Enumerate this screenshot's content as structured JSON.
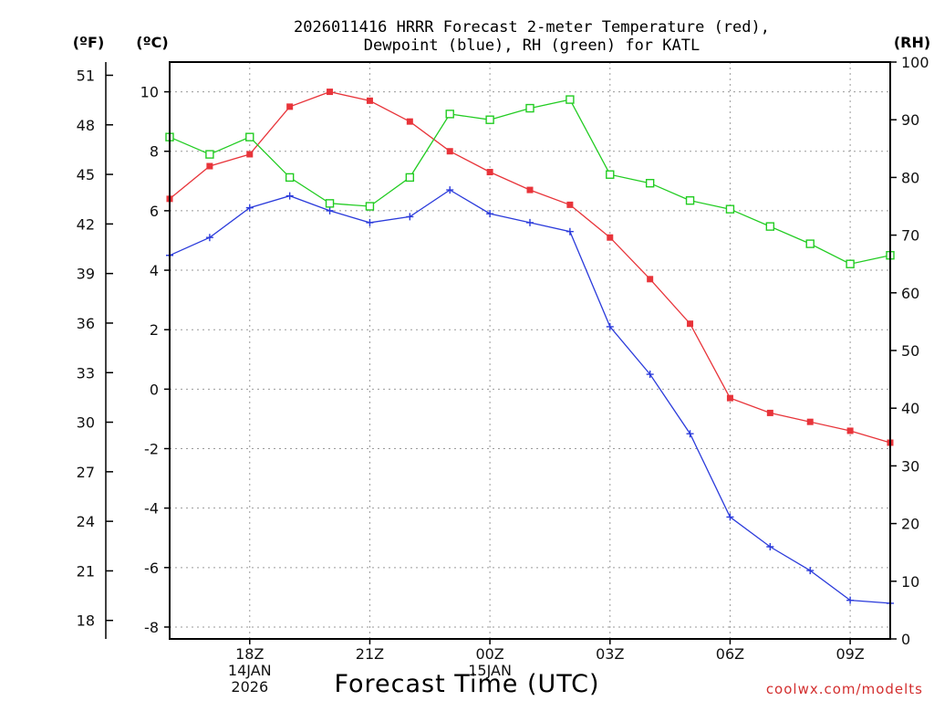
{
  "chart_data": {
    "type": "line",
    "title": [
      "2026011416 HRRR Forecast 2-meter Temperature (red),",
      "Dewpoint (blue), RH (green) for KATL"
    ],
    "unit_labels": {
      "fahrenheit": "(ºF)",
      "celsius": "(ºC)",
      "rh": "(RH)"
    },
    "xlabel": "Forecast Time (UTC)",
    "watermark": "coolwx.com/modelts",
    "x_hours": [
      16,
      17,
      18,
      19,
      20,
      21,
      22,
      23,
      24,
      25,
      26,
      27,
      28,
      29,
      30,
      31,
      32,
      33,
      34
    ],
    "x_ticks": [
      {
        "hour": 18,
        "lines": [
          "18Z",
          "14JAN",
          "2026"
        ]
      },
      {
        "hour": 21,
        "lines": [
          "21Z"
        ]
      },
      {
        "hour": 24,
        "lines": [
          "00Z",
          "15JAN"
        ]
      },
      {
        "hour": 27,
        "lines": [
          "03Z"
        ]
      },
      {
        "hour": 30,
        "lines": [
          "06Z"
        ]
      },
      {
        "hour": 33,
        "lines": [
          "09Z"
        ]
      }
    ],
    "left_c_axis": {
      "ylim": [
        -8.4,
        11.0
      ],
      "ticks": [
        "-8",
        "-6",
        "-4",
        "-2",
        "0",
        "2",
        "4",
        "6",
        "8",
        "10"
      ]
    },
    "left_f_axis": {
      "ticks": [
        "18",
        "21",
        "24",
        "27",
        "30",
        "33",
        "36",
        "39",
        "42",
        "45",
        "48",
        "51"
      ]
    },
    "right_rh_axis": {
      "ylim": [
        0,
        100
      ],
      "ticks": [
        "0",
        "10",
        "20",
        "30",
        "40",
        "50",
        "60",
        "70",
        "80",
        "90",
        "100"
      ]
    },
    "series": [
      {
        "name": "Temperature",
        "axis": "celsius",
        "color": "#e8343a",
        "marker": "filled-square",
        "values": [
          6.4,
          7.5,
          7.9,
          9.5,
          10.0,
          9.7,
          9.0,
          8.0,
          7.3,
          6.7,
          6.2,
          5.1,
          3.7,
          2.2,
          -0.3,
          -0.8,
          -1.1,
          -1.4,
          -1.8
        ]
      },
      {
        "name": "Dewpoint",
        "axis": "celsius",
        "color": "#2b3bdb",
        "marker": "plus",
        "values": [
          4.5,
          5.1,
          6.1,
          6.5,
          6.0,
          5.6,
          5.8,
          6.7,
          5.9,
          5.6,
          5.3,
          2.1,
          0.5,
          -1.5,
          -4.3,
          -5.3,
          -6.1,
          -7.1,
          -7.2
        ]
      },
      {
        "name": "RH",
        "axis": "rh",
        "color": "#22cc22",
        "marker": "open-square",
        "values": [
          87,
          84,
          87,
          80,
          75.5,
          75,
          80,
          91,
          90,
          92,
          93.5,
          80.5,
          79,
          76,
          74.5,
          71.5,
          68.5,
          65,
          66.5
        ]
      }
    ]
  }
}
